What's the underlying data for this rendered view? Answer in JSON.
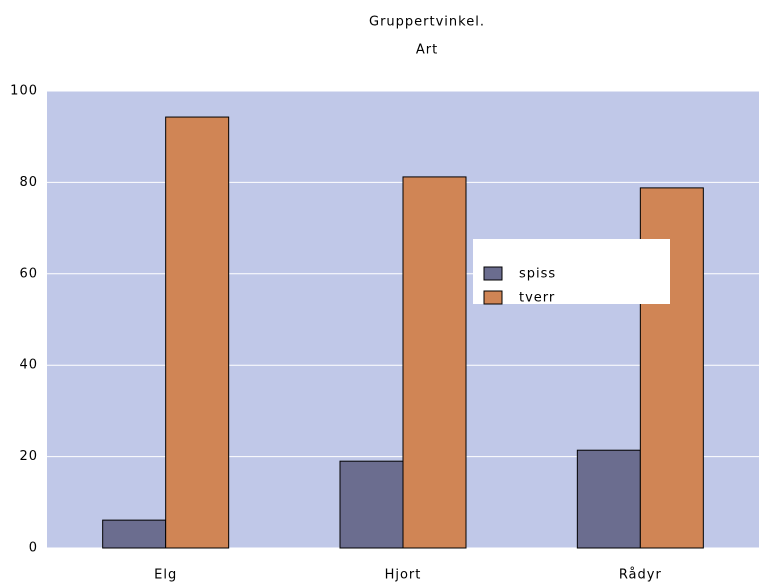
{
  "chart_data": {
    "type": "bar",
    "title": "Gruppertvinkel.",
    "subtitle": "Art",
    "categories": [
      "Elg",
      "Hjort",
      "Rådyr"
    ],
    "series": [
      {
        "name": "spiss",
        "color": "#6b6d8f",
        "values": [
          6.1,
          19.0,
          21.4
        ]
      },
      {
        "name": "tverr",
        "color": "#d08555",
        "values": [
          94.3,
          81.2,
          78.8
        ]
      }
    ],
    "ylim": [
      0,
      100
    ],
    "yticks": [
      0,
      20,
      40,
      60,
      80,
      100
    ],
    "grid": true,
    "legend": "center-right"
  }
}
